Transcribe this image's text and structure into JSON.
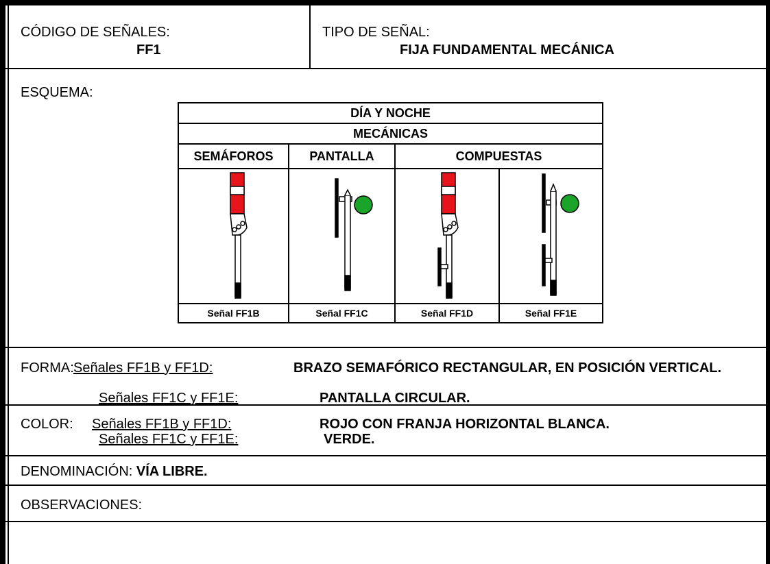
{
  "header": {
    "code_label": "CÓDIGO DE SEÑALES:",
    "code": "FF1",
    "type_label": "TIPO DE SEÑAL:",
    "type": "FIJA FUNDAMENTAL MECÁNICA"
  },
  "schema": {
    "label": "ESQUEMA:",
    "title": "DÍA Y NOCHE",
    "subtitle": "MECÁNICAS",
    "groups": [
      "SEMÁFOROS",
      "PANTALLA",
      "COMPUESTAS"
    ],
    "signals": [
      "Señal FF1B",
      "Señal FF1C",
      "Señal FF1D",
      "Señal FF1E"
    ]
  },
  "forma": {
    "label": "FORMA:",
    "rows": [
      {
        "signals": "Señales FF1B y FF1D:",
        "text": "BRAZO SEMAFÓRICO RECTANGULAR, EN POSICIÓN VERTICAL."
      },
      {
        "signals": "Señales FF1C y FF1E:",
        "text": "PANTALLA CIRCULAR."
      }
    ]
  },
  "color": {
    "label": "COLOR:",
    "rows": [
      {
        "signals": "Señales FF1B y FF1D:",
        "text": "ROJO CON FRANJA HORIZONTAL BLANCA."
      },
      {
        "signals": "Señales FF1C y FF1E:",
        "text": "VERDE."
      }
    ]
  },
  "denominacion": {
    "label": "DENOMINACIÓN:",
    "text": "VÍA LIBRE."
  },
  "observaciones": {
    "label": "OBSERVACIONES:"
  }
}
